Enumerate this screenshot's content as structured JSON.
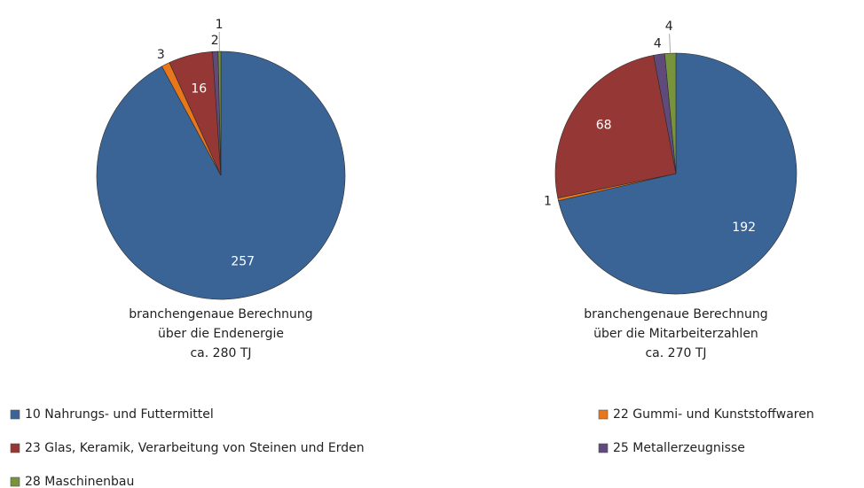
{
  "chart_data": [
    {
      "type": "pie",
      "categories": [
        "10 Nahrungs- und Futtermittel",
        "22 Gummi- und Kunststoffwaren",
        "23 Glas, Keramik, Verarbeitung von Steinen und Erden",
        "25 Metallerzeugnisse",
        "28 Maschinenbau"
      ],
      "values": [
        257,
        3,
        16,
        2,
        1
      ],
      "colors": [
        "#3a6495",
        "#e8761b",
        "#953735",
        "#604a7b",
        "#77933c"
      ],
      "caption": [
        "branchengenaue Berechnung",
        "über die Endenergie",
        "ca. 280 TJ"
      ]
    },
    {
      "type": "pie",
      "categories": [
        "10 Nahrungs- und Futtermittel",
        "22 Gummi- und Kunststoffwaren",
        "23 Glas, Keramik, Verarbeitung von Steinen und Erden",
        "25 Metallerzeugnisse",
        "28 Maschinenbau"
      ],
      "values": [
        192,
        1,
        68,
        4,
        4
      ],
      "colors": [
        "#3a6495",
        "#e8761b",
        "#953735",
        "#604a7b",
        "#77933c"
      ],
      "caption": [
        "branchengenaue Berechnung",
        "über die Mitarbeiterzahlen",
        "ca. 270 TJ"
      ]
    }
  ]
}
